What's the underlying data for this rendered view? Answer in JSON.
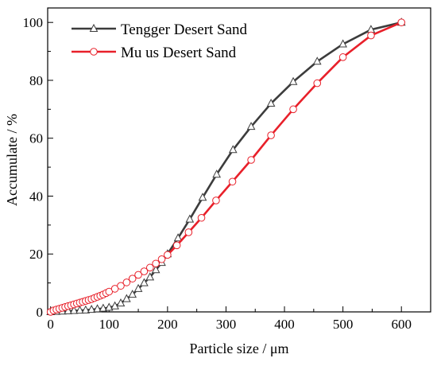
{
  "chart_data": {
    "type": "line",
    "xlabel": "Particle size / μm",
    "ylabel": "Accumulate / %",
    "xlim": [
      -5,
      650
    ],
    "ylim": [
      0,
      105
    ],
    "xticks": [
      0,
      100,
      200,
      300,
      400,
      500,
      600
    ],
    "yticks": [
      0,
      20,
      40,
      60,
      80,
      100
    ],
    "xtick_labels": [
      "0",
      "100",
      "200",
      "300",
      "400",
      "500",
      "600"
    ],
    "ytick_labels": [
      "0",
      "20",
      "40",
      "60",
      "80",
      "100"
    ],
    "grid": false,
    "legend_position": "top-left",
    "series": [
      {
        "name": "Tengger Desert Sand",
        "color": "#3c3c3c",
        "marker": "triangle",
        "x": [
          0,
          10,
          20,
          30,
          40,
          50,
          60,
          70,
          80,
          90,
          100,
          110,
          120,
          130,
          140,
          150,
          160,
          170,
          180,
          190,
          200,
          218,
          238,
          260,
          284,
          312,
          343,
          377,
          415,
          456,
          500,
          548,
          600
        ],
        "y": [
          0,
          0.1,
          0.2,
          0.3,
          0.4,
          0.5,
          0.6,
          0.8,
          1.0,
          1.2,
          1.5,
          2.0,
          3.0,
          4.5,
          6.0,
          8.0,
          10.0,
          12.0,
          14.5,
          17.0,
          20.0,
          25.5,
          32.0,
          39.5,
          47.5,
          56.0,
          64.0,
          72.0,
          79.5,
          86.5,
          92.5,
          97.5,
          100.0
        ]
      },
      {
        "name": "Mu us Desert Sand",
        "color": "#e8202a",
        "marker": "circle",
        "x": [
          0,
          5,
          10,
          15,
          20,
          25,
          30,
          35,
          40,
          45,
          50,
          55,
          60,
          65,
          70,
          75,
          80,
          85,
          90,
          95,
          100,
          110,
          120,
          130,
          140,
          150,
          160,
          170,
          180,
          190,
          200,
          216,
          236,
          258,
          283,
          311,
          343,
          377,
          415,
          456,
          500,
          548,
          600
        ],
        "y": [
          0,
          0.5,
          0.8,
          1.1,
          1.4,
          1.7,
          2.0,
          2.3,
          2.6,
          2.9,
          3.2,
          3.5,
          3.8,
          4.1,
          4.4,
          4.8,
          5.2,
          5.6,
          6.0,
          6.5,
          7.0,
          8.0,
          9.0,
          10.2,
          11.5,
          12.8,
          14.0,
          15.3,
          16.7,
          18.2,
          19.7,
          23.0,
          27.5,
          32.5,
          38.5,
          45.0,
          52.5,
          61.0,
          70.0,
          79.0,
          88.0,
          95.5,
          100.0
        ]
      }
    ]
  }
}
